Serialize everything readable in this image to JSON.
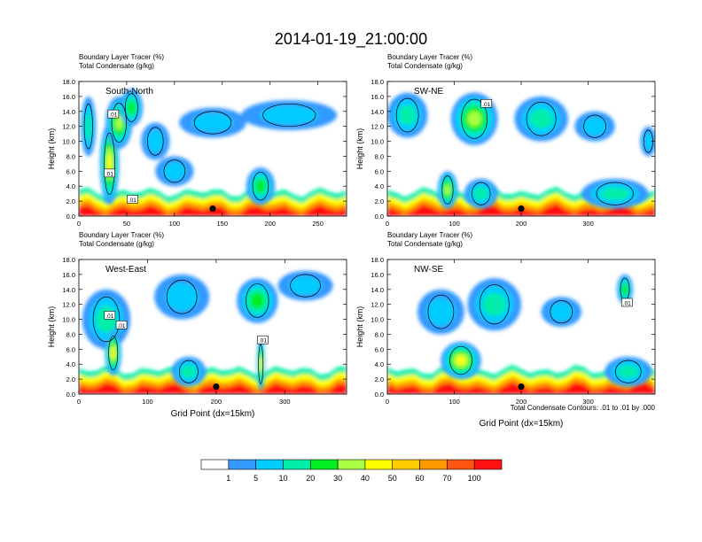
{
  "figure": {
    "title": "2014-01-19_21:00:00",
    "footnote": "Total Condensate Contours: .01 to .01 by .000"
  },
  "chart_data": [
    {
      "type": "heatmap",
      "id": "south-north",
      "panel_label": "South-North",
      "header_line1": "Boundary Layer Tracer   (%)",
      "header_line2": "Total Condensate   (g/kg)",
      "ylabel": "Height (km)",
      "xlabel": "",
      "xlim": [
        0,
        280
      ],
      "xticks": [
        0,
        50,
        100,
        150,
        200,
        250
      ],
      "ylim": [
        0,
        18
      ],
      "yticks": [
        "0.0",
        "2.0",
        "4.0",
        "6.0",
        "8.0",
        "10.0",
        "12.0",
        "14.0",
        "16.0",
        "18.0"
      ],
      "contour_labels": [
        {
          "x": 36,
          "y": 13.6,
          "text": ".01"
        },
        {
          "x": 32,
          "y": 5.7,
          "text": ".01"
        },
        {
          "x": 56,
          "y": 2.2,
          "text": ".01"
        }
      ],
      "marker": {
        "x": 140,
        "y": 1.0
      },
      "blobs": [
        {
          "x": 32,
          "y": 7,
          "rx": 10,
          "ry": 5.5,
          "level": 6
        },
        {
          "x": 42,
          "y": 12.5,
          "rx": 14,
          "ry": 3.5,
          "level": 5
        },
        {
          "x": 55,
          "y": 14.5,
          "rx": 12,
          "ry": 2.5,
          "level": 4
        },
        {
          "x": 80,
          "y": 10,
          "rx": 15,
          "ry": 2.5,
          "level": 2
        },
        {
          "x": 140,
          "y": 12.5,
          "rx": 35,
          "ry": 2,
          "level": 2
        },
        {
          "x": 220,
          "y": 13.5,
          "rx": 50,
          "ry": 2,
          "level": 2
        },
        {
          "x": 190,
          "y": 4,
          "rx": 15,
          "ry": 2.5,
          "level": 4
        },
        {
          "x": 100,
          "y": 6,
          "rx": 20,
          "ry": 2,
          "level": 2
        },
        {
          "x": 10,
          "y": 12,
          "rx": 8,
          "ry": 4,
          "level": 3
        }
      ]
    },
    {
      "type": "heatmap",
      "id": "sw-ne",
      "panel_label": "SW-NE",
      "header_line1": "Boundary Layer Tracer   (%)",
      "header_line2": "Total Condensate   (g/kg)",
      "ylabel": "Height (km)",
      "xlabel": "",
      "xlim": [
        0,
        400
      ],
      "xticks": [
        0,
        100,
        200,
        300
      ],
      "ylim": [
        0,
        18
      ],
      "yticks": [
        "0.0",
        "2.0",
        "4.0",
        "6.0",
        "8.0",
        "10.0",
        "12.0",
        "14.0",
        "16.0",
        "18.0"
      ],
      "contour_labels": [
        {
          "x": 148,
          "y": 15,
          "text": ".01"
        }
      ],
      "marker": {
        "x": 200,
        "y": 1.0
      },
      "blobs": [
        {
          "x": 30,
          "y": 13.5,
          "rx": 30,
          "ry": 3,
          "level": 3
        },
        {
          "x": 130,
          "y": 13,
          "rx": 35,
          "ry": 3.5,
          "level": 5
        },
        {
          "x": 230,
          "y": 13,
          "rx": 40,
          "ry": 3,
          "level": 3
        },
        {
          "x": 310,
          "y": 12,
          "rx": 30,
          "ry": 2,
          "level": 2
        },
        {
          "x": 90,
          "y": 3.5,
          "rx": 15,
          "ry": 2.5,
          "level": 5
        },
        {
          "x": 140,
          "y": 3,
          "rx": 25,
          "ry": 2,
          "level": 3
        },
        {
          "x": 340,
          "y": 3,
          "rx": 50,
          "ry": 2,
          "level": 3
        },
        {
          "x": 390,
          "y": 10,
          "rx": 12,
          "ry": 2,
          "level": 2
        }
      ]
    },
    {
      "type": "heatmap",
      "id": "west-east",
      "panel_label": "West-East",
      "header_line1": "Boundary Layer Tracer   (%)",
      "header_line2": "Total Condensate   (g/kg)",
      "ylabel": "Height (km)",
      "xlabel": "Grid Point (dx=15km)",
      "xlim": [
        0,
        390
      ],
      "xticks": [
        0,
        100,
        200,
        300
      ],
      "ylim": [
        0,
        18
      ],
      "yticks": [
        "0.0",
        "2.0",
        "4.0",
        "6.0",
        "8.0",
        "10.0",
        "12.0",
        "14.0",
        "16.0",
        "18.0"
      ],
      "contour_labels": [
        {
          "x": 45,
          "y": 10.5,
          "text": ".01"
        },
        {
          "x": 62,
          "y": 9.2,
          "text": ".01"
        },
        {
          "x": 268,
          "y": 7.2,
          "text": ".01"
        }
      ],
      "marker": {
        "x": 200,
        "y": 1.0
      },
      "blobs": [
        {
          "x": 40,
          "y": 10,
          "rx": 35,
          "ry": 4,
          "level": 3
        },
        {
          "x": 50,
          "y": 5.5,
          "rx": 12,
          "ry": 3,
          "level": 6
        },
        {
          "x": 150,
          "y": 13,
          "rx": 40,
          "ry": 3,
          "level": 2
        },
        {
          "x": 260,
          "y": 12.5,
          "rx": 30,
          "ry": 3,
          "level": 4
        },
        {
          "x": 265,
          "y": 4,
          "rx": 6,
          "ry": 3.5,
          "level": 6
        },
        {
          "x": 330,
          "y": 14.5,
          "rx": 40,
          "ry": 2,
          "level": 2
        },
        {
          "x": 160,
          "y": 3,
          "rx": 25,
          "ry": 2,
          "level": 3
        }
      ]
    },
    {
      "type": "heatmap",
      "id": "nw-se",
      "panel_label": "NW-SE",
      "header_line1": "Boundary Layer Tracer   (%)",
      "header_line2": "Total Condensate   (g/kg)",
      "ylabel": "Height (km)",
      "xlabel": "Grid Point (dx=15km)",
      "xlim": [
        0,
        400
      ],
      "xticks": [
        0,
        100,
        200,
        300
      ],
      "ylim": [
        0,
        18
      ],
      "yticks": [
        "0.0",
        "2.0",
        "4.0",
        "6.0",
        "8.0",
        "10.0",
        "12.0",
        "14.0",
        "16.0",
        "18.0"
      ],
      "contour_labels": [
        {
          "x": 358,
          "y": 12.2,
          "text": ".01"
        }
      ],
      "marker": {
        "x": 200,
        "y": 1.0
      },
      "blobs": [
        {
          "x": 160,
          "y": 12,
          "rx": 40,
          "ry": 3.5,
          "level": 3
        },
        {
          "x": 80,
          "y": 11,
          "rx": 35,
          "ry": 3,
          "level": 2
        },
        {
          "x": 110,
          "y": 4.5,
          "rx": 30,
          "ry": 2.5,
          "level": 6
        },
        {
          "x": 260,
          "y": 11,
          "rx": 30,
          "ry": 2,
          "level": 2
        },
        {
          "x": 355,
          "y": 14,
          "rx": 12,
          "ry": 2,
          "level": 4
        },
        {
          "x": 360,
          "y": 3,
          "rx": 35,
          "ry": 2,
          "level": 3
        }
      ]
    }
  ],
  "colorbar": {
    "colors": [
      "#ffffff",
      "#3399ff",
      "#00ccff",
      "#00eeaa",
      "#00ee22",
      "#aaff44",
      "#ffff00",
      "#ffcc00",
      "#ff9900",
      "#ff5511",
      "#ff1111"
    ],
    "labels": [
      "1",
      "5",
      "10",
      "20",
      "30",
      "40",
      "50",
      "60",
      "70",
      "100"
    ]
  }
}
